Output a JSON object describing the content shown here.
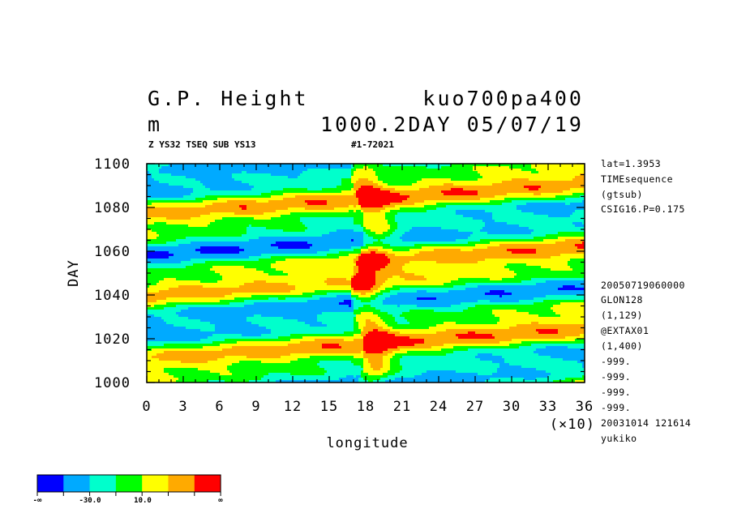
{
  "header": {
    "title_left": "G.P. Height",
    "title_right": "kuo700pa400",
    "unit": "m",
    "subtitle_right": "1000.2DAY 05/07/19",
    "small_left": "Z YS32 TSEQ SUB YS13",
    "small_right": "#1-72021"
  },
  "side_notes": {
    "top": [
      "lat=1.3953",
      "TIMEsequence",
      "(gtsub)",
      "CSIG16.P=0.175"
    ],
    "bottom": [
      "20050719060000",
      "GLON128",
      "(1,129)",
      "@EXTAX01",
      "(1,400)",
      "-999.",
      "-999.",
      "-999.",
      "-999.",
      "20031014 121614",
      "yukiko"
    ]
  },
  "legend": {
    "labels": [
      "-∞",
      "-30.0",
      "10.0",
      "∞"
    ],
    "colors": [
      "#0000ff",
      "#00aaff",
      "#00ffcc",
      "#00ff00",
      "#ffff00",
      "#ffaa00",
      "#ff0000"
    ]
  },
  "chart_data": {
    "type": "heatmap",
    "title": "G.P. Height",
    "xlabel": "longitude",
    "ylabel": "DAY",
    "x_multiplier_label": "(×10)",
    "xlim": [
      0,
      36
    ],
    "ylim": [
      1000,
      1100
    ],
    "x_ticks": [
      "0",
      "3",
      "6",
      "9",
      "12",
      "15",
      "18",
      "21",
      "24",
      "27",
      "30",
      "33",
      "36"
    ],
    "y_ticks": [
      "1000",
      "1020",
      "1040",
      "1060",
      "1080",
      "1100"
    ],
    "contour_levels": [
      -30.0,
      -10.0,
      10.0,
      30.0
    ],
    "description_bands": "eastward-tilted anomaly bands; discontinuity near longitude 170-180"
  }
}
